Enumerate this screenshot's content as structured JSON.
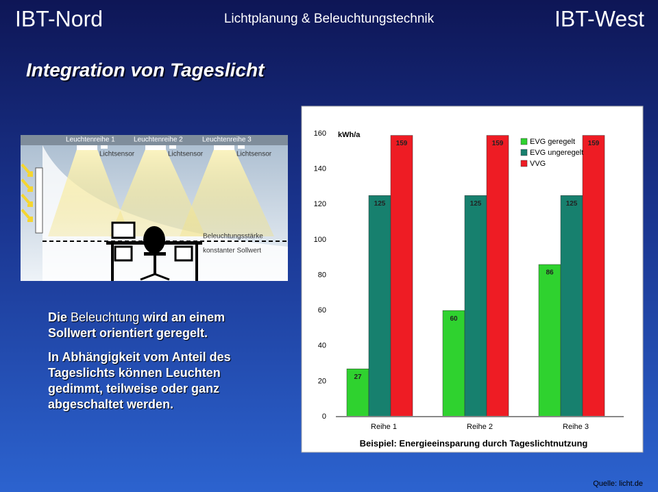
{
  "header": {
    "left": "IBT-Nord",
    "center": "Lichtplanung & Beleuchtungstechnik",
    "right": "IBT-West"
  },
  "title": "Integration von Tageslicht",
  "diagram": {
    "rows": [
      "Leuchtenreihe 1",
      "Leuchtenreihe 2",
      "Leuchtenreihe 3"
    ],
    "sensors": [
      "Lichtsensor",
      "Lichtsensor",
      "Lichtsensor"
    ],
    "note": [
      "Beleuchtungsstärke",
      "konstanter Sollwert"
    ]
  },
  "body": {
    "first": [
      "Die",
      "Beleuchtung",
      "wird an einem Sollwert orientiert geregelt."
    ],
    "second": "In Abhängigkeit vom Anteil des Tageslichts können Leuchten gedimmt, teilweise oder ganz abgeschaltet werden."
  },
  "source": "Quelle: licht.de",
  "chart_data": {
    "type": "bar",
    "title": "Beispiel: Energieeinsparung durch Tageslichtnutzung",
    "y_label": "kWh/a",
    "categories": [
      "Reihe 1",
      "Reihe 2",
      "Reihe 3"
    ],
    "series": [
      {
        "name": "EVG geregelt",
        "color": "#2fd22f",
        "values": [
          27,
          60,
          86
        ]
      },
      {
        "name": "EVG ungeregelt",
        "color": "#17806e",
        "values": [
          125,
          125,
          125
        ]
      },
      {
        "name": "VVG",
        "color": "#ee1c24",
        "values": [
          159,
          159,
          159
        ]
      }
    ],
    "ylim": [
      0,
      160
    ],
    "yticks": [
      0,
      20,
      40,
      60,
      80,
      100,
      120,
      140,
      160
    ],
    "legend": "top-right"
  }
}
